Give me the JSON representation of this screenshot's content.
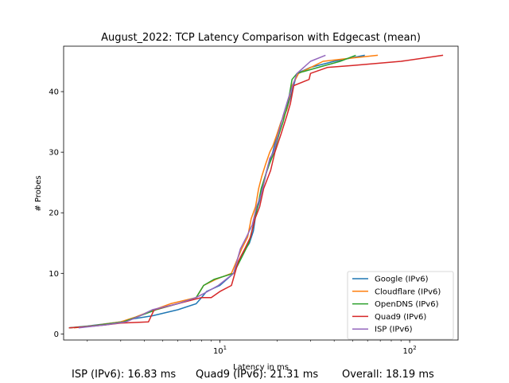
{
  "chart_data": {
    "type": "line",
    "title": "August_2022: TCP Latency Comparison with Edgecast (mean)",
    "xlabel": "Latency in ms",
    "ylabel": "# Probes",
    "xscale": "log",
    "xlim": [
      1.5,
      180
    ],
    "ylim": [
      -1,
      47.5
    ],
    "yticks": [
      0,
      10,
      20,
      30,
      40
    ],
    "xticks": [
      {
        "value": 10,
        "base": "10",
        "exp": "1"
      },
      {
        "value": 100,
        "base": "10",
        "exp": "2"
      }
    ],
    "grid": false,
    "legend_position": "lower-right",
    "series": [
      {
        "name": "Google (IPv6)",
        "color": "#1f77b4",
        "x": [
          1.6,
          2.0,
          3.0,
          3.5,
          4.4,
          6.0,
          7.5,
          8.0,
          8.5,
          10.0,
          11.8,
          13.0,
          14.3,
          15.0,
          15.5,
          16.2,
          17.0,
          18.0,
          19.0,
          20.0,
          21.0,
          22.5,
          24.0,
          25.5,
          30.0,
          40.0,
          58.0
        ],
        "y": [
          1,
          1.3,
          2,
          2.5,
          3,
          4,
          5,
          6,
          7,
          8,
          10,
          13,
          15,
          17,
          20,
          22,
          25,
          28,
          30,
          33,
          35,
          37,
          40,
          43,
          44,
          45,
          46
        ]
      },
      {
        "name": "Cloudflare (IPv6)",
        "color": "#ff7f0e",
        "x": [
          1.7,
          2.2,
          3.0,
          3.6,
          4.5,
          5.5,
          7.5,
          8.2,
          9.5,
          11.5,
          13.0,
          14.0,
          14.6,
          15.4,
          16.0,
          16.6,
          17.4,
          18.3,
          19.0,
          20.0,
          21.0,
          22.5,
          24.0,
          26.0,
          35.0,
          48.0,
          68.0
        ],
        "y": [
          1,
          1.4,
          2,
          2.8,
          4,
          5,
          6,
          8,
          9,
          10,
          14,
          16,
          19,
          21,
          24,
          26,
          28,
          30,
          31,
          33,
          35,
          37,
          41,
          43,
          45,
          45.5,
          46
        ]
      },
      {
        "name": "OpenDNS (IPv6)",
        "color": "#2ca02c",
        "x": [
          1.6,
          2.1,
          3.1,
          3.8,
          4.6,
          6.0,
          7.5,
          8.2,
          9.3,
          11.8,
          13.2,
          14.2,
          15.0,
          15.8,
          16.5,
          17.3,
          18.2,
          19.3,
          20.5,
          21.5,
          22.8,
          24.0,
          25.5,
          33.0,
          43.0,
          52.0
        ],
        "y": [
          1,
          1.3,
          2,
          3,
          4,
          5,
          6,
          8,
          9,
          10,
          13,
          15,
          18,
          21,
          24,
          26,
          28,
          30,
          33,
          35,
          38,
          42,
          43,
          44,
          45,
          46
        ]
      },
      {
        "name": "Quad9 (IPv6)",
        "color": "#d62728",
        "x": [
          1.6,
          2.0,
          2.5,
          3.0,
          4.2,
          4.5,
          6.0,
          8.0,
          9.0,
          10.0,
          11.5,
          12.5,
          13.5,
          14.5,
          15.3,
          16.2,
          17.0,
          18.5,
          19.5,
          21.0,
          22.5,
          23.5,
          24.5,
          29.5,
          30.0,
          37.0,
          50.0,
          90.0,
          150.0
        ],
        "y": [
          1,
          1.2,
          1.5,
          1.8,
          2,
          4,
          5,
          6,
          6,
          7,
          8,
          12,
          14,
          16,
          19,
          21,
          24,
          27,
          30,
          33,
          36,
          38,
          41,
          42,
          43,
          44,
          44.3,
          45,
          46
        ]
      },
      {
        "name": "ISP (IPv6)",
        "color": "#9467bd",
        "x": [
          1.8,
          2.5,
          3.2,
          3.8,
          4.4,
          6.0,
          7.5,
          8.6,
          9.8,
          11.8,
          12.8,
          13.8,
          14.8,
          15.6,
          16.5,
          17.4,
          18.3,
          19.2,
          20.3,
          21.5,
          23.0,
          24.2,
          25.5,
          30.0,
          36.0
        ],
        "y": [
          1,
          1.5,
          2,
          3,
          4,
          5,
          6,
          7,
          8,
          10,
          14,
          16,
          18,
          21,
          23,
          26,
          29,
          30,
          33,
          36,
          39,
          41,
          43,
          45,
          46
        ]
      }
    ]
  },
  "footer": {
    "isp": "ISP (IPv6): 16.83 ms",
    "quad9": "Quad9 (IPv6): 21.31 ms",
    "overall": "Overall: 18.19 ms"
  }
}
